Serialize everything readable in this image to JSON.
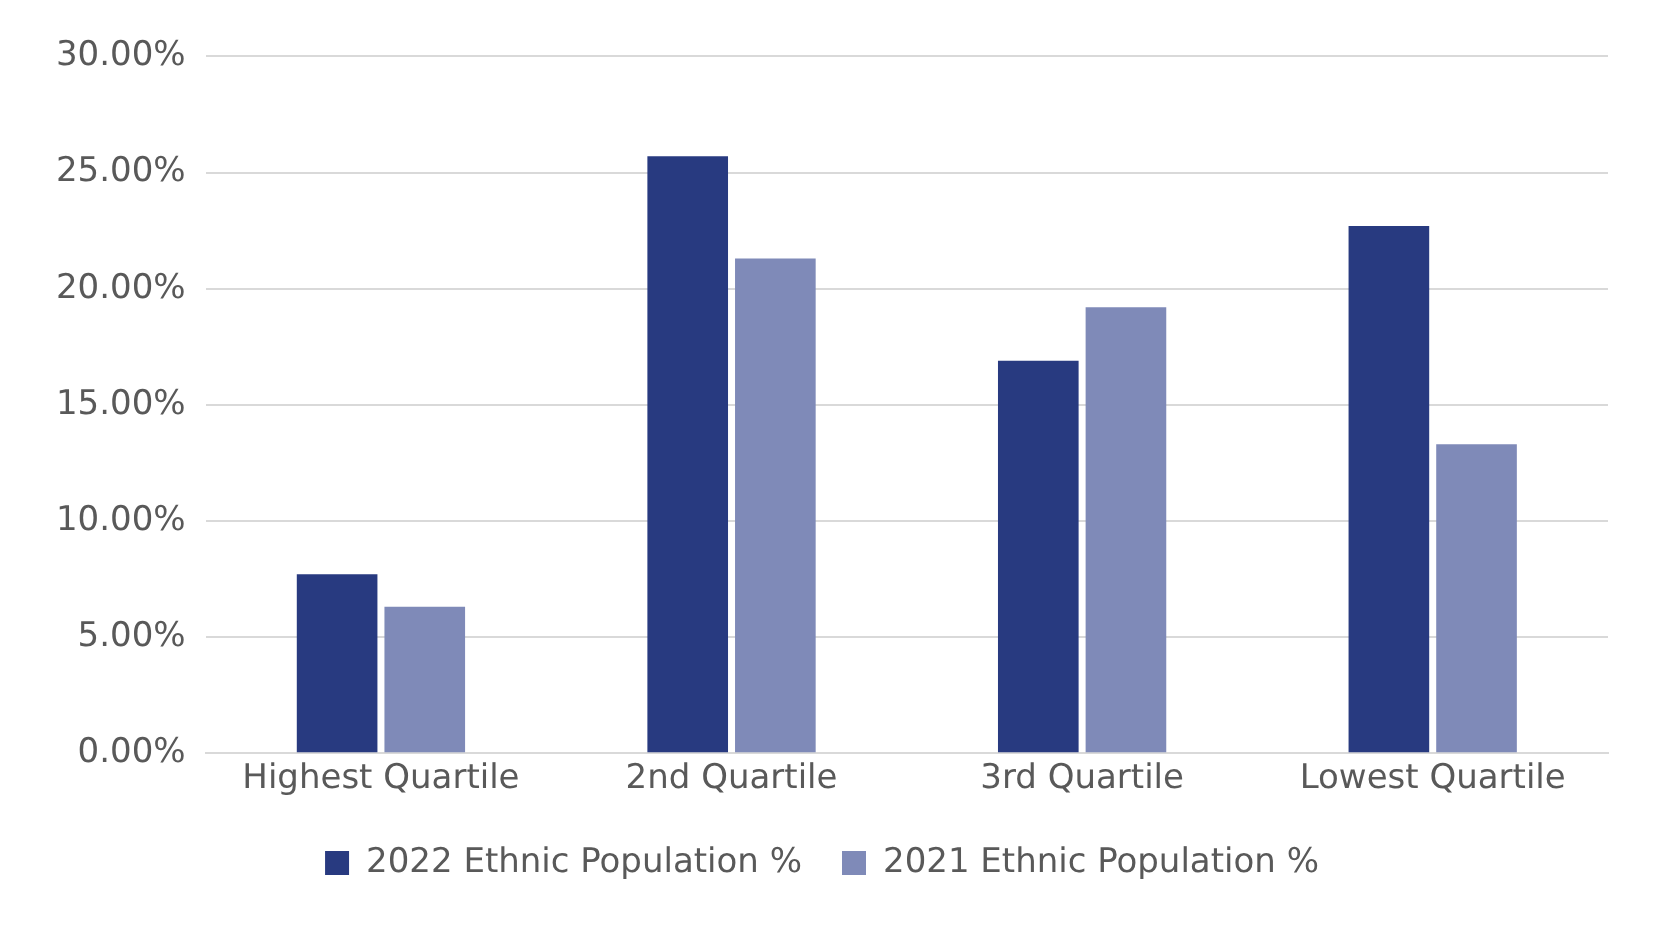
{
  "chart_data": {
    "type": "bar",
    "categories": [
      "Highest Quartile",
      "2nd Quartile",
      "3rd Quartile",
      "Lowest Quartile"
    ],
    "series": [
      {
        "name": "2022 Ethnic Population %",
        "color": "#283a80",
        "values": [
          7.7,
          25.7,
          16.9,
          22.7
        ]
      },
      {
        "name": "2021 Ethnic Population %",
        "color": "#7f8ab8",
        "values": [
          6.3,
          21.3,
          19.2,
          13.3
        ]
      }
    ],
    "ylim": [
      0,
      30
    ],
    "yticks": [
      {
        "value": 0,
        "label": "0.00%"
      },
      {
        "value": 5,
        "label": "5.00%"
      },
      {
        "value": 10,
        "label": "10.00%"
      },
      {
        "value": 15,
        "label": "15.00%"
      },
      {
        "value": 20,
        "label": "20.00%"
      },
      {
        "value": 25,
        "label": "25.00%"
      },
      {
        "value": 30,
        "label": "30.00%"
      }
    ],
    "grid": "y",
    "legend": "bottom"
  }
}
